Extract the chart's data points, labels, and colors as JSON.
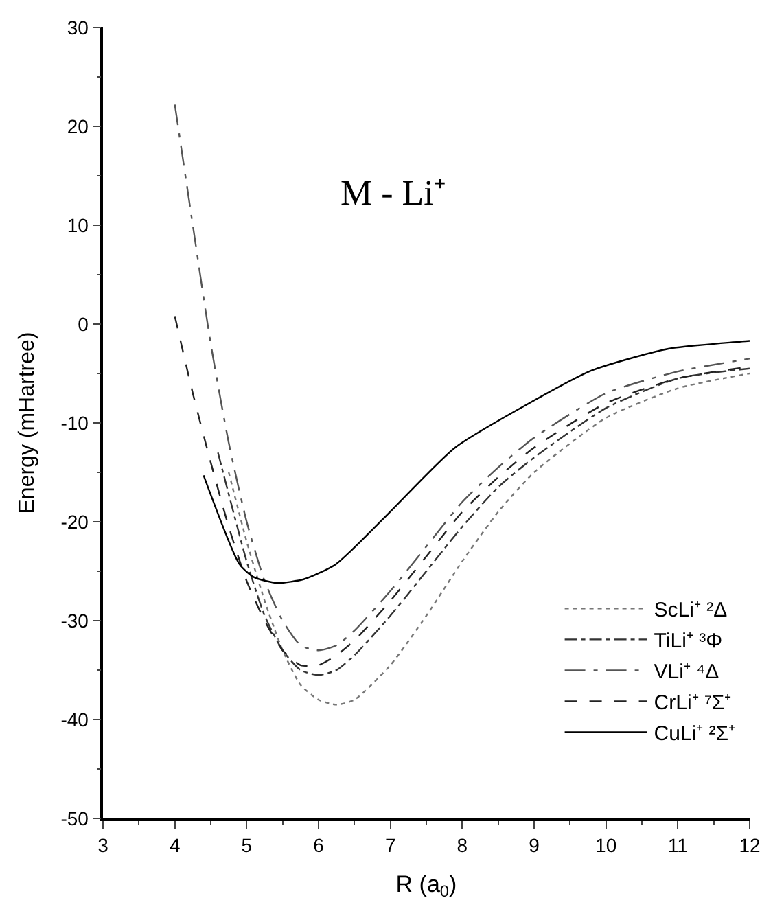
{
  "chart_data": {
    "type": "line",
    "xlabel": "R (a$_{0}$)",
    "ylabel": "Energy (mHartree)",
    "annotations": [
      "M - Li⁺"
    ],
    "xlim": [
      3,
      12
    ],
    "xticks": [
      3,
      4,
      5,
      6,
      7,
      8,
      9,
      10,
      11,
      12
    ],
    "ylim": [
      -50,
      30
    ],
    "yticks": [
      -50,
      -40,
      -30,
      -20,
      -10,
      0,
      10,
      20,
      30
    ],
    "legend": "bottom right",
    "marker": "none",
    "series": [
      {
        "name": "ScLi⁺ ²Δ",
        "color": "#777777",
        "line_style": "dotted",
        "x": [
          4.75,
          5,
          5.25,
          5.5,
          5.75,
          6,
          6.25,
          6.5,
          7,
          7.5,
          8,
          8.5,
          9,
          10,
          11,
          12
        ],
        "values": [
          -15,
          -22,
          -28,
          -33,
          -36.5,
          -38,
          -38.5,
          -38,
          -34.5,
          -29.5,
          -24,
          -19,
          -15,
          -9.5,
          -6.5,
          -5
        ]
      },
      {
        "name": "TiLi⁺ ³Φ",
        "color": "#333333",
        "line_style": "dashdot",
        "x": [
          4.6,
          5,
          5.25,
          5.5,
          5.75,
          6,
          6.25,
          6.5,
          7,
          7.5,
          8,
          8.5,
          9,
          10,
          11,
          12
        ],
        "values": [
          -13,
          -24,
          -29.5,
          -33,
          -35,
          -35.5,
          -35,
          -33.5,
          -29.5,
          -25,
          -20.5,
          -16.5,
          -13.5,
          -8.5,
          -5.5,
          -4.5
        ]
      },
      {
        "name": "VLi⁺ ⁴Δ",
        "color": "#555555",
        "line_style": "longdashdot",
        "x": [
          4,
          4.25,
          4.5,
          4.75,
          5,
          5.25,
          5.5,
          5.75,
          6,
          6.25,
          6.5,
          7,
          7.5,
          8,
          8.5,
          9,
          10,
          11,
          12
        ],
        "values": [
          22.2,
          10,
          -2,
          -12,
          -20,
          -26,
          -30,
          -32.5,
          -33,
          -32.5,
          -31,
          -27,
          -22.5,
          -18,
          -14.5,
          -11.5,
          -7,
          -4.8,
          -3.5
        ]
      },
      {
        "name": "CrLi⁺ ⁷Σ⁺",
        "color": "#222222",
        "line_style": "dashed",
        "x": [
          4,
          4.25,
          4.5,
          4.75,
          5,
          5.25,
          5.5,
          5.75,
          6,
          6.25,
          6.5,
          7,
          7.5,
          8,
          8.5,
          9,
          10,
          11,
          12
        ],
        "values": [
          0.8,
          -7,
          -14,
          -20.5,
          -26,
          -30,
          -33,
          -34.5,
          -34.5,
          -33.5,
          -32,
          -28,
          -23.5,
          -19,
          -15.5,
          -12.5,
          -8,
          -5.5,
          -4.3
        ]
      },
      {
        "name": "CuLi⁺ ²Σ⁺",
        "color": "#000000",
        "line_style": "solid",
        "x": [
          4.4,
          4.9,
          5.1,
          5.43,
          5.8,
          6.24,
          6.9,
          7.9,
          8.86,
          9.8,
          10.87,
          11.83,
          12
        ],
        "values": [
          -15.3,
          -24.3,
          -25.6,
          -26.2,
          -25.8,
          -24.3,
          -19.7,
          -12.5,
          -8.3,
          -4.7,
          -2.5,
          -1.8,
          -1.7
        ]
      }
    ]
  }
}
